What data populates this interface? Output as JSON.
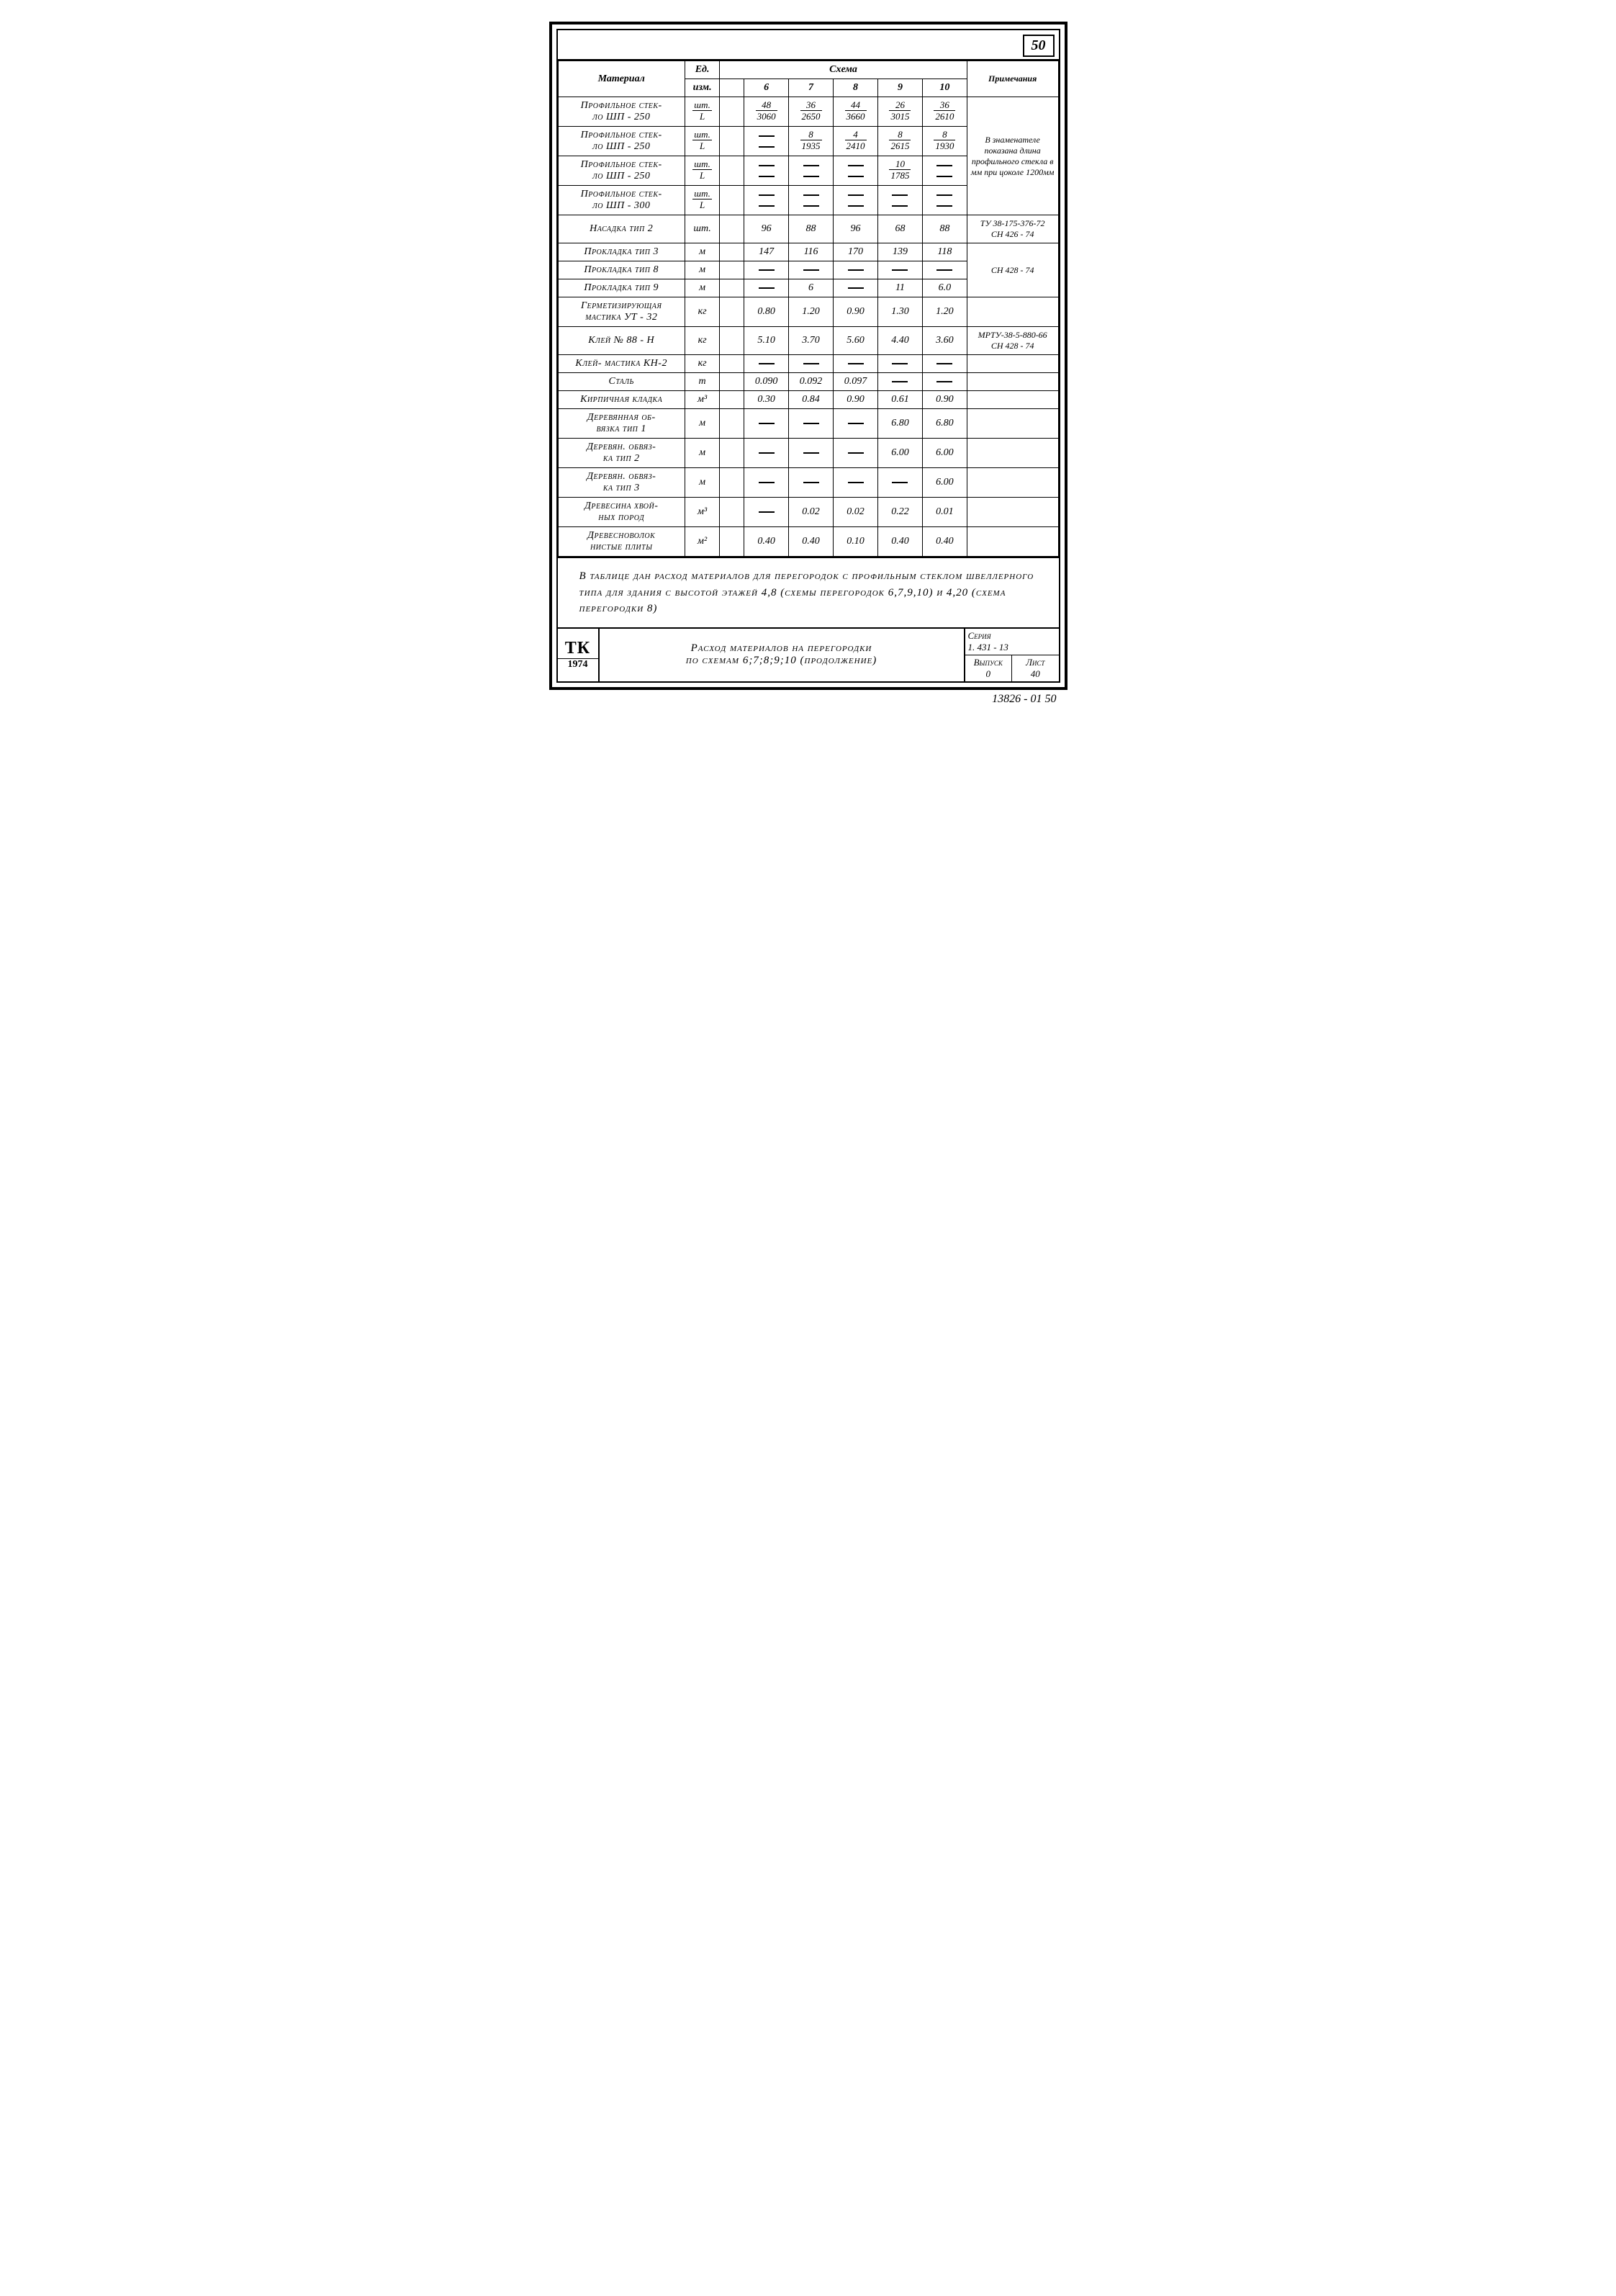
{
  "page_number": "50",
  "headers": {
    "material": "Материал",
    "unit": "Ед.",
    "unit_sub": "изм.",
    "schema": "Схема",
    "notes": "Примечания",
    "cols": [
      "6",
      "7",
      "8",
      "9",
      "10"
    ]
  },
  "rows": [
    {
      "mat": "Профильное стек-\nло   ШП - 250",
      "unit": "шт.\nL",
      "type": "frac",
      "v": [
        [
          "48",
          "3060"
        ],
        [
          "36",
          "2650"
        ],
        [
          "44",
          "3660"
        ],
        [
          "26",
          "3015"
        ],
        [
          "36",
          "2610"
        ]
      ],
      "note": "В знаменателе показана длина профильного стекла в мм при цоколе 1200мм",
      "note_span": 4
    },
    {
      "mat": "Профильное стек-\nло   ШП - 250",
      "unit": "шт.\nL",
      "type": "frac",
      "v": [
        [
          "–",
          "–"
        ],
        [
          "8",
          "1935"
        ],
        [
          "4",
          "2410"
        ],
        [
          "8",
          "2615"
        ],
        [
          "8",
          "1930"
        ]
      ]
    },
    {
      "mat": "Профильное стек-\nло   ШП - 250",
      "unit": "шт.\nL",
      "type": "frac",
      "v": [
        [
          "–",
          "–"
        ],
        [
          "–",
          "–"
        ],
        [
          "–",
          "–"
        ],
        [
          "10",
          "1785"
        ],
        [
          "–",
          "–"
        ]
      ]
    },
    {
      "mat": "Профильное стек-\nло   ШП - 300",
      "unit": "шт.\nL",
      "type": "frac",
      "v": [
        [
          "–",
          "–"
        ],
        [
          "–",
          "–"
        ],
        [
          "–",
          "–"
        ],
        [
          "–",
          "–"
        ],
        [
          "–",
          "–"
        ]
      ]
    },
    {
      "mat": "Насадка  тип 2",
      "unit": "шт.",
      "type": "val",
      "v": [
        "96",
        "88",
        "96",
        "68",
        "88"
      ],
      "note": "ТУ 38-175-376-72\nСН 426 - 74"
    },
    {
      "mat": "Прокладка тип 3",
      "unit": "м",
      "type": "val",
      "v": [
        "147",
        "116",
        "170",
        "139",
        "118"
      ],
      "note": "СН 428 - 74",
      "note_span": 3
    },
    {
      "mat": "Прокладка тип 8",
      "unit": "м",
      "type": "dash",
      "v": [
        "—",
        "—",
        "—",
        "—",
        "—"
      ]
    },
    {
      "mat": "Прокладка  тип 9",
      "unit": "м",
      "type": "val",
      "v": [
        "—",
        "6",
        "—",
        "11",
        "6.0"
      ]
    },
    {
      "mat": "Герметизирующая\nмастика   УТ - 32",
      "unit": "кг",
      "type": "val",
      "v": [
        "0.80",
        "1.20",
        "0.90",
        "1.30",
        "1.20"
      ]
    },
    {
      "mat": "Клей   № 88 - Н",
      "unit": "кг",
      "type": "val",
      "v": [
        "5.10",
        "3.70",
        "5.60",
        "4.40",
        "3.60"
      ],
      "note": "МРТУ-38-5-880-66\nСН 428 - 74"
    },
    {
      "mat": "Клей- мастика КН-2",
      "unit": "кг",
      "type": "dash",
      "v": [
        "—",
        "—",
        "—",
        "—",
        "—"
      ],
      "note": ""
    },
    {
      "mat": "Сталь",
      "unit": "т",
      "type": "val",
      "v": [
        "0.090",
        "0.092",
        "0.097",
        "—",
        "—"
      ],
      "note": ""
    },
    {
      "mat": "Кирпичная кладка",
      "unit": "м³",
      "type": "val",
      "v": [
        "0.30",
        "0.84",
        "0.90",
        "0.61",
        "0.90"
      ],
      "note": ""
    },
    {
      "mat": "Деревянная  об-\nвязка   тип 1",
      "unit": "м",
      "type": "val",
      "v": [
        "—",
        "—",
        "—",
        "6.80",
        "6.80"
      ],
      "note": ""
    },
    {
      "mat": "Деревян.  обвяз-\nка    тип 2",
      "unit": "м",
      "type": "val",
      "v": [
        "—",
        "—",
        "—",
        "6.00",
        "6.00"
      ],
      "note": ""
    },
    {
      "mat": "Деревян.  обвяз-\nка    тип 3",
      "unit": "м",
      "type": "val",
      "v": [
        "—",
        "—",
        "—",
        "—",
        "6.00"
      ],
      "note": ""
    },
    {
      "mat": "Древесина  хвой-\nных    пород",
      "unit": "м³",
      "type": "val",
      "v": [
        "—",
        "0.02",
        "0.02",
        "0.22",
        "0.01"
      ],
      "note": ""
    },
    {
      "mat": "Древесноволок\nнистые   плиты",
      "unit": "м²",
      "type": "val",
      "v": [
        "0.40",
        "0.40",
        "0.10",
        "0.40",
        "0.40"
      ],
      "note": ""
    }
  ],
  "note_text": "В таблице  дан расход  материалов  для перегородок с профильным  стеклом  швеллерного  типа  для  здания с высотой этажей 4,8 (схемы перегородок 6,7,9,10) и 4,20 (схема перегородки 8)",
  "title_block": {
    "tk": "ТК",
    "year": "1974",
    "title": "Расход  материалов  на перегородки\nпо схемам  6;7;8;9;10 (продолжение)",
    "series_label": "Серия",
    "series_val": "1. 431 - 13",
    "issue_label": "Выпуск",
    "issue_val": "0",
    "sheet_label": "Лист",
    "sheet_val": "40"
  },
  "footer": "13826 - 01   50"
}
